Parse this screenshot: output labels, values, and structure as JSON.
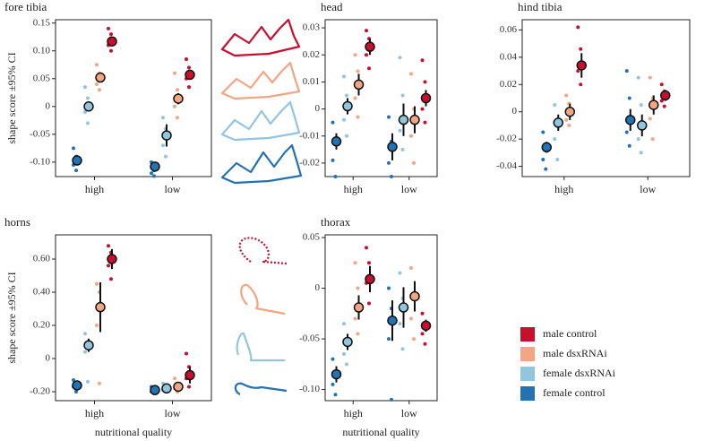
{
  "legend": [
    {
      "name": "male control",
      "color": "#c8102e"
    },
    {
      "name": "male dsxRNAi",
      "color": "#f4a582"
    },
    {
      "name": "female dsxRNAi",
      "color": "#92c5de"
    },
    {
      "name": "female control",
      "color": "#2372b3"
    }
  ],
  "chart_data": [
    {
      "type": "pointrange",
      "title": "fore tibia",
      "ylabel": "shape score ±95% CI",
      "categories": [
        "high",
        "low"
      ],
      "ylim": [
        -0.126,
        0.156
      ],
      "yticks": [
        {
          "value": -0.1,
          "label": "-0.10"
        },
        -0.05,
        0,
        0.05,
        {
          "value": 0.1,
          "label": "0.10"
        },
        0.15
      ],
      "series": [
        {
          "values": [
            0.117,
            0.057
          ],
          "error": [
            0.008,
            0.008
          ],
          "points": [
            [
              0.14,
              0.13,
              0.11,
              0.1
            ],
            [
              0.085,
              0.07,
              0.05,
              0.035
            ]
          ]
        },
        {
          "values": [
            0.052,
            0.014
          ],
          "error": [
            0.008,
            0.01
          ],
          "points": [
            [
              0.075,
              0.06,
              0.04,
              0.03
            ],
            [
              0.06,
              0.03,
              0.0,
              -0.02
            ]
          ]
        },
        {
          "values": [
            0.0,
            -0.052
          ],
          "error": [
            0.008,
            0.02
          ],
          "points": [
            [
              0.035,
              0.015,
              -0.01,
              -0.03
            ],
            [
              -0.02,
              -0.04,
              -0.07,
              -0.09
            ]
          ]
        },
        {
          "values": [
            -0.097,
            -0.108
          ],
          "error": [
            0.008,
            0.008
          ],
          "points": [
            [
              -0.075,
              -0.09,
              -0.105,
              -0.115
            ],
            [
              -0.1,
              -0.115,
              -0.12,
              -0.125
            ]
          ]
        }
      ]
    },
    {
      "type": "pointrange",
      "title": "head",
      "categories": [
        "high",
        "low"
      ],
      "ylim": [
        -0.025,
        0.033
      ],
      "yticks": [
        -0.02,
        -0.01,
        0,
        0.01,
        0.02,
        0.03
      ],
      "series": [
        {
          "values": [
            0.023,
            0.004
          ],
          "error": [
            0.003,
            0.003
          ],
          "points": [
            [
              0.029,
              0.026,
              0.02,
              0.015
            ],
            [
              0.018,
              0.01,
              0.0,
              -0.005
            ]
          ]
        },
        {
          "values": [
            0.009,
            -0.004
          ],
          "error": [
            0.004,
            0.005
          ],
          "points": [
            [
              0.02,
              0.014,
              0.004,
              -0.003
            ],
            [
              0.013,
              0.0,
              -0.01,
              -0.02
            ]
          ]
        },
        {
          "values": [
            0.001,
            -0.004
          ],
          "error": [
            0.003,
            0.006
          ],
          "points": [
            [
              0.012,
              0.005,
              -0.004,
              -0.01
            ],
            [
              0.019,
              0.005,
              -0.008,
              -0.015
            ]
          ]
        },
        {
          "values": [
            -0.012,
            -0.014
          ],
          "error": [
            0.003,
            0.005
          ],
          "points": [
            [
              -0.005,
              -0.013,
              -0.019,
              -0.025
            ],
            [
              -0.003,
              -0.012,
              -0.02,
              -0.025
            ]
          ]
        }
      ]
    },
    {
      "type": "pointrange",
      "title": "hind tibia",
      "categories": [
        "high",
        "low"
      ],
      "ylim": [
        -0.0475,
        0.0675
      ],
      "yticks": [
        -0.04,
        -0.02,
        0,
        0.02,
        0.04,
        0.06
      ],
      "series": [
        {
          "values": [
            0.034,
            0.012
          ],
          "error": [
            0.009,
            0.004
          ],
          "points": [
            [
              0.062,
              0.046,
              0.03,
              0.02
            ],
            [
              0.02,
              0.015,
              0.008,
              0.004
            ]
          ]
        },
        {
          "values": [
            0.0,
            0.005
          ],
          "error": [
            0.006,
            0.007
          ],
          "points": [
            [
              0.012,
              0.006,
              -0.006,
              -0.01
            ],
            [
              0.025,
              0.01,
              -0.005,
              -0.02
            ]
          ]
        },
        {
          "values": [
            -0.008,
            -0.01
          ],
          "error": [
            0.006,
            0.008
          ],
          "points": [
            [
              0.005,
              -0.01,
              -0.02,
              -0.035
            ],
            [
              0.025,
              0.005,
              -0.02,
              -0.03
            ]
          ]
        },
        {
          "values": [
            -0.026,
            -0.006
          ],
          "error": [
            0.004,
            0.008
          ],
          "points": [
            [
              -0.015,
              -0.025,
              -0.035,
              -0.042
            ],
            [
              0.03,
              0.01,
              -0.015,
              -0.025
            ]
          ]
        }
      ]
    },
    {
      "type": "pointrange",
      "title": "horns",
      "ylabel": "shape score ±95% CI",
      "xlabel": "nutritional quality",
      "categories": [
        "high",
        "low"
      ],
      "ylim": [
        -0.254,
        0.746
      ],
      "yticks": [
        {
          "value": -0.2,
          "label": "-0.20"
        },
        0,
        {
          "value": 0.2,
          "label": "0.20"
        },
        {
          "value": 0.4,
          "label": "0.40"
        },
        {
          "value": 0.6,
          "label": "0.60"
        }
      ],
      "series": [
        {
          "values": [
            0.6,
            -0.1
          ],
          "error": [
            0.06,
            0.05
          ],
          "points": [
            [
              0.68,
              0.64,
              0.56,
              0.48
            ],
            [
              0.03,
              -0.05,
              -0.12,
              -0.17
            ]
          ]
        },
        {
          "values": [
            0.31,
            -0.17
          ],
          "error": [
            0.15,
            0.02
          ],
          "points": [
            [
              0.45,
              0.4,
              0.2,
              -0.15
            ],
            [
              -0.12,
              -0.15,
              -0.18,
              -0.2
            ]
          ]
        },
        {
          "values": [
            0.08,
            -0.18
          ],
          "error": [
            0.04,
            0.02
          ],
          "points": [
            [
              0.15,
              0.1,
              0.04,
              -0.14
            ],
            [
              -0.15,
              -0.17,
              -0.19,
              -0.2
            ]
          ]
        },
        {
          "values": [
            -0.162,
            -0.19
          ],
          "error": [
            0.02,
            0.01
          ],
          "points": [
            [
              -0.13,
              -0.15,
              -0.17,
              -0.2
            ],
            [
              -0.17,
              -0.18,
              -0.2,
              -0.21
            ]
          ]
        }
      ]
    },
    {
      "type": "pointrange",
      "title": "thorax",
      "xlabel": "nutritional quality",
      "categories": [
        "high",
        "low"
      ],
      "ylim": [
        -0.111,
        0.0527
      ],
      "yticks": [
        {
          "value": -0.1,
          "label": "-0.10"
        },
        -0.05,
        0,
        0.05
      ],
      "series": [
        {
          "values": [
            0.009,
            -0.037
          ],
          "error": [
            0.013,
            0.006
          ],
          "points": [
            [
              0.04,
              0.025,
              0.005,
              -0.015
            ],
            [
              -0.025,
              -0.035,
              -0.045,
              -0.055
            ]
          ]
        },
        {
          "values": [
            -0.019,
            -0.008
          ],
          "error": [
            0.012,
            0.015
          ],
          "points": [
            [
              0.025,
              0.0,
              -0.03,
              -0.045
            ],
            [
              0.02,
              -0.01,
              -0.03,
              -0.05
            ]
          ]
        },
        {
          "values": [
            -0.053,
            -0.019
          ],
          "error": [
            0.008,
            0.02
          ],
          "points": [
            [
              -0.035,
              -0.05,
              -0.065,
              -0.075
            ],
            [
              0.015,
              -0.01,
              -0.035,
              -0.06
            ]
          ]
        },
        {
          "values": [
            -0.085,
            -0.032
          ],
          "error": [
            0.008,
            0.02
          ],
          "points": [
            [
              -0.07,
              -0.085,
              -0.095,
              -0.105
            ],
            [
              0.0,
              -0.02,
              -0.05,
              -0.11
            ]
          ]
        }
      ]
    }
  ]
}
